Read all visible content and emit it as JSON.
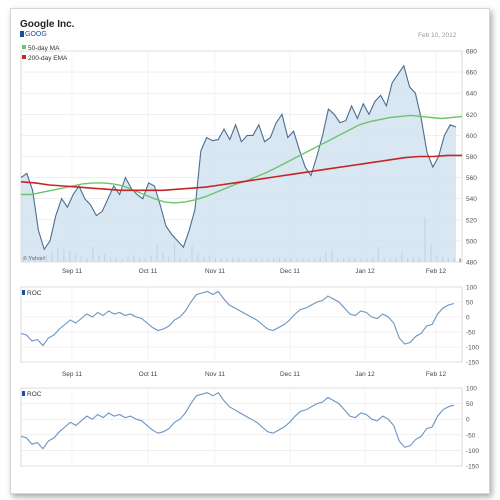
{
  "header": {
    "company": "Google Inc.",
    "ticker": "GOOG",
    "date": "Feb 10, 2012"
  },
  "colors": {
    "price_line": "#4b6d8e",
    "price_fill": "#d2e3f1",
    "ma50": "#6ac56a",
    "ema200": "#c62525",
    "volume": "#9078c4",
    "roc": "#6a95c2",
    "ticker_square": "#1a4f9c"
  },
  "chart_data": [
    {
      "type": "line",
      "panel": "price",
      "x_labels": [
        "Sep 11",
        "Oct 11",
        "Nov 11",
        "Dec 11",
        "Jan 12",
        "Feb 12"
      ],
      "ylim": [
        480,
        680
      ],
      "y_ticks": [
        480,
        500,
        520,
        540,
        560,
        580,
        600,
        620,
        640,
        660,
        680
      ],
      "legend": [
        "50-day MA",
        "200-day EMA"
      ],
      "legend_position": "top-left",
      "watermark": "© Yahoo!",
      "grid": true,
      "series": [
        {
          "name": "GOOG",
          "area": true,
          "values": [
            560,
            564,
            548,
            510,
            492,
            500,
            524,
            540,
            532,
            544,
            552,
            540,
            534,
            524,
            528,
            540,
            552,
            544,
            560,
            550,
            544,
            540,
            555,
            552,
            534,
            514,
            506,
            500,
            494,
            510,
            530,
            585,
            598,
            595,
            596,
            606,
            596,
            610,
            594,
            600,
            600,
            610,
            594,
            598,
            612,
            620,
            598,
            604,
            586,
            570,
            562,
            580,
            600,
            625,
            620,
            612,
            614,
            628,
            616,
            630,
            620,
            632,
            638,
            628,
            650,
            658,
            666,
            646,
            640,
            616,
            584,
            570,
            580,
            600,
            610,
            608
          ]
        },
        {
          "name": "50-day MA",
          "values": [
            544,
            544,
            546,
            548,
            550,
            552,
            554,
            555,
            555,
            554,
            552,
            548,
            544,
            540,
            537,
            536,
            537,
            539,
            542,
            546,
            550,
            554,
            557,
            561,
            565,
            570,
            575,
            580,
            585,
            590,
            595,
            600,
            605,
            610,
            613,
            615,
            617,
            618,
            619,
            618,
            617,
            616,
            617,
            618
          ]
        },
        {
          "name": "200-day EMA",
          "values": [
            556,
            555,
            553,
            552,
            551,
            550,
            549,
            548,
            548,
            548,
            548,
            549,
            550,
            551,
            553,
            555,
            557,
            559,
            561,
            563,
            565,
            567,
            569,
            571,
            573,
            575,
            577,
            579,
            580,
            580,
            581,
            581
          ]
        }
      ],
      "volume": [
        6,
        8,
        5,
        7,
        10,
        14,
        20,
        18,
        16,
        12,
        8,
        6,
        22,
        9,
        11,
        7,
        6,
        5,
        8,
        10,
        7,
        6,
        9,
        26,
        15,
        9,
        28,
        6,
        5,
        24,
        12,
        8,
        8,
        6,
        5,
        5,
        7,
        6,
        5,
        5,
        5,
        4,
        5,
        6,
        7,
        5,
        6,
        5,
        5,
        5,
        6,
        7,
        15,
        17,
        6,
        6,
        7,
        6,
        5,
        5,
        6,
        22,
        7,
        6,
        6,
        14,
        6,
        8,
        7,
        65,
        26,
        9,
        8,
        7,
        6,
        5
      ]
    },
    {
      "type": "line",
      "panel": "indicator",
      "title": "ROC",
      "x_labels": [
        "Sep 11",
        "Oct 11",
        "Nov 11",
        "Dec 11",
        "Jan 12",
        "Feb 12"
      ],
      "ylim": [
        -150,
        100
      ],
      "y_ticks": [
        100,
        50,
        0,
        -50,
        -100,
        -150
      ],
      "grid": true,
      "series": [
        {
          "name": "ROC",
          "values": [
            -55,
            -60,
            -80,
            -75,
            -95,
            -70,
            -60,
            -40,
            -25,
            -10,
            -20,
            -5,
            10,
            0,
            15,
            5,
            20,
            10,
            15,
            5,
            10,
            0,
            -5,
            -20,
            -35,
            -45,
            -40,
            -30,
            -10,
            0,
            20,
            50,
            75,
            80,
            85,
            75,
            85,
            60,
            40,
            30,
            20,
            10,
            0,
            -10,
            -25,
            -40,
            -45,
            -35,
            -25,
            -10,
            10,
            25,
            30,
            40,
            50,
            55,
            70,
            60,
            50,
            30,
            10,
            5,
            20,
            15,
            0,
            -5,
            10,
            0,
            -20,
            -70,
            -90,
            -85,
            -65,
            -55,
            -30,
            -25,
            10,
            30,
            40,
            45
          ]
        }
      ]
    },
    {
      "type": "line",
      "panel": "indicator",
      "title": "ROC",
      "ylim": [
        -150,
        100
      ],
      "y_ticks": [
        100,
        50,
        0,
        -50,
        -100,
        -150
      ],
      "grid": true,
      "series": [
        {
          "name": "ROC",
          "values": [
            -55,
            -60,
            -80,
            -75,
            -95,
            -70,
            -60,
            -40,
            -25,
            -10,
            -20,
            -5,
            10,
            0,
            15,
            5,
            20,
            10,
            15,
            5,
            10,
            0,
            -5,
            -20,
            -35,
            -45,
            -40,
            -30,
            -10,
            0,
            20,
            50,
            75,
            80,
            85,
            75,
            85,
            60,
            40,
            30,
            20,
            10,
            0,
            -10,
            -25,
            -40,
            -45,
            -35,
            -25,
            -10,
            10,
            25,
            30,
            40,
            50,
            55,
            70,
            60,
            50,
            30,
            10,
            5,
            20,
            15,
            0,
            -5,
            10,
            0,
            -20,
            -70,
            -90,
            -85,
            -65,
            -55,
            -30,
            -25,
            10,
            30,
            40,
            45
          ]
        }
      ]
    }
  ]
}
